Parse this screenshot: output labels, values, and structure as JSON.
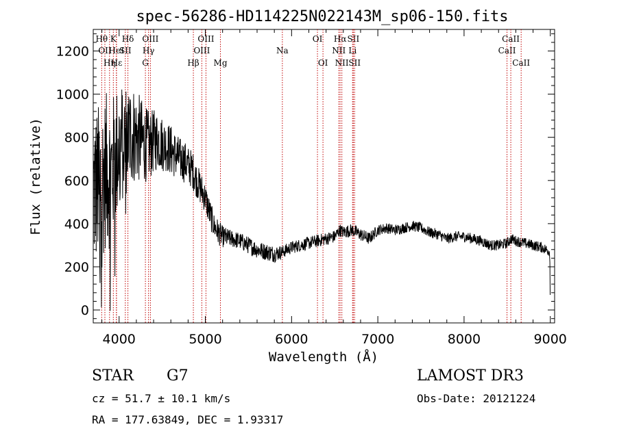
{
  "chart_data": {
    "type": "line",
    "title": "spec-56286-HD114225N022143M_sp06-150.fits",
    "xlabel": "Wavelength (Å)",
    "ylabel": "Flux (relative)",
    "xlim": [
      3700,
      9050
    ],
    "ylim": [
      -60,
      1300
    ],
    "x_ticks": [
      4000,
      5000,
      6000,
      7000,
      8000,
      9000
    ],
    "y_ticks": [
      0,
      200,
      400,
      600,
      800,
      1000,
      1200
    ],
    "grid": false,
    "line_color": "#000000",
    "marker_color": "#c00000",
    "series": [
      {
        "x": [
          3700,
          3800,
          3850,
          3900,
          3950,
          4000,
          4050,
          4100,
          4150,
          4200,
          4250,
          4300,
          4350,
          4400,
          4450,
          4500,
          4550,
          4600,
          4650,
          4700,
          4750,
          4800,
          4850,
          4900,
          4950,
          5000,
          5050,
          5100,
          5150,
          5200,
          5300,
          5400,
          5500,
          5600,
          5700,
          5800,
          5900,
          6000,
          6100,
          6200,
          6300,
          6400,
          6500,
          6560,
          6600,
          6700,
          6800,
          6900,
          7000,
          7100,
          7200,
          7300,
          7400,
          7500,
          7600,
          7700,
          7800,
          7900,
          8000,
          8100,
          8200,
          8300,
          8400,
          8500,
          8550,
          8600,
          8700,
          8800,
          8900,
          8950,
          9000
        ],
        "y": [
          550,
          600,
          650,
          620,
          700,
          760,
          780,
          800,
          820,
          800,
          790,
          770,
          760,
          780,
          790,
          770,
          760,
          740,
          720,
          700,
          690,
          670,
          650,
          600,
          560,
          520,
          450,
          390,
          360,
          340,
          330,
          320,
          300,
          280,
          270,
          260,
          270,
          290,
          300,
          310,
          320,
          330,
          340,
          370,
          360,
          370,
          350,
          330,
          370,
          380,
          370,
          380,
          390,
          380,
          360,
          350,
          330,
          340,
          340,
          330,
          320,
          300,
          300,
          310,
          330,
          320,
          310,
          300,
          290,
          280,
          270
        ],
        "noise": [
          380,
          380,
          360,
          350,
          320,
          300,
          280,
          260,
          240,
          220,
          200,
          180,
          160,
          150,
          140,
          130,
          120,
          120,
          110,
          100,
          100,
          90,
          90,
          80,
          80,
          70,
          70,
          60,
          60,
          50,
          40,
          40,
          40,
          40,
          40,
          40,
          30,
          30,
          30,
          30,
          30,
          30,
          30,
          30,
          30,
          30,
          30,
          30,
          25,
          25,
          25,
          25,
          25,
          25,
          25,
          25,
          25,
          25,
          25,
          25,
          25,
          25,
          25,
          25,
          25,
          25,
          25,
          25,
          25,
          25,
          25
        ]
      }
    ],
    "lines": [
      {
        "wl": 3798,
        "label": "Hθ",
        "row": 0
      },
      {
        "wl": 3835,
        "label": "OII",
        "row": 1
      },
      {
        "wl": 3889,
        "label": "Hη",
        "row": 2
      },
      {
        "wl": 3933,
        "label": "K",
        "row": 0
      },
      {
        "wl": 3968,
        "label": "HeI",
        "row": 1
      },
      {
        "wl": 3970,
        "label": "Hε",
        "row": 2
      },
      {
        "wl": 4072,
        "label": "SII",
        "row": 1
      },
      {
        "wl": 4102,
        "label": "Hδ",
        "row": 0
      },
      {
        "wl": 4305,
        "label": "G",
        "row": 2
      },
      {
        "wl": 4341,
        "label": "Hγ",
        "row": 1
      },
      {
        "wl": 4363,
        "label": "OIII",
        "row": 0
      },
      {
        "wl": 4861,
        "label": "Hβ",
        "row": 2
      },
      {
        "wl": 4959,
        "label": "OIII",
        "row": 1
      },
      {
        "wl": 5007,
        "label": "OIII",
        "row": 0
      },
      {
        "wl": 5175,
        "label": "Mg",
        "row": 2
      },
      {
        "wl": 5893,
        "label": "Na",
        "row": 1
      },
      {
        "wl": 6300,
        "label": "OI",
        "row": 0
      },
      {
        "wl": 6364,
        "label": "OI",
        "row": 2
      },
      {
        "wl": 6548,
        "label": "NII",
        "row": 1
      },
      {
        "wl": 6563,
        "label": "Hα",
        "row": 0
      },
      {
        "wl": 6583,
        "label": "NII",
        "row": 2
      },
      {
        "wl": 6707,
        "label": "Li",
        "row": 1
      },
      {
        "wl": 6716,
        "label": "SII",
        "row": 0
      },
      {
        "wl": 6731,
        "label": "SII",
        "row": 2
      },
      {
        "wl": 8498,
        "label": "CaII",
        "row": 1
      },
      {
        "wl": 8542,
        "label": "CaII",
        "row": 0
      },
      {
        "wl": 8662,
        "label": "CaII",
        "row": 2
      }
    ]
  },
  "info": {
    "class": "STAR",
    "subclass": "G7",
    "survey": "LAMOST DR3",
    "cz": "cz = 51.7 ± 10.1 km/s",
    "obs_date": "Obs-Date: 20121224",
    "radec": "RA = 177.63849, DEC =    1.93317"
  }
}
